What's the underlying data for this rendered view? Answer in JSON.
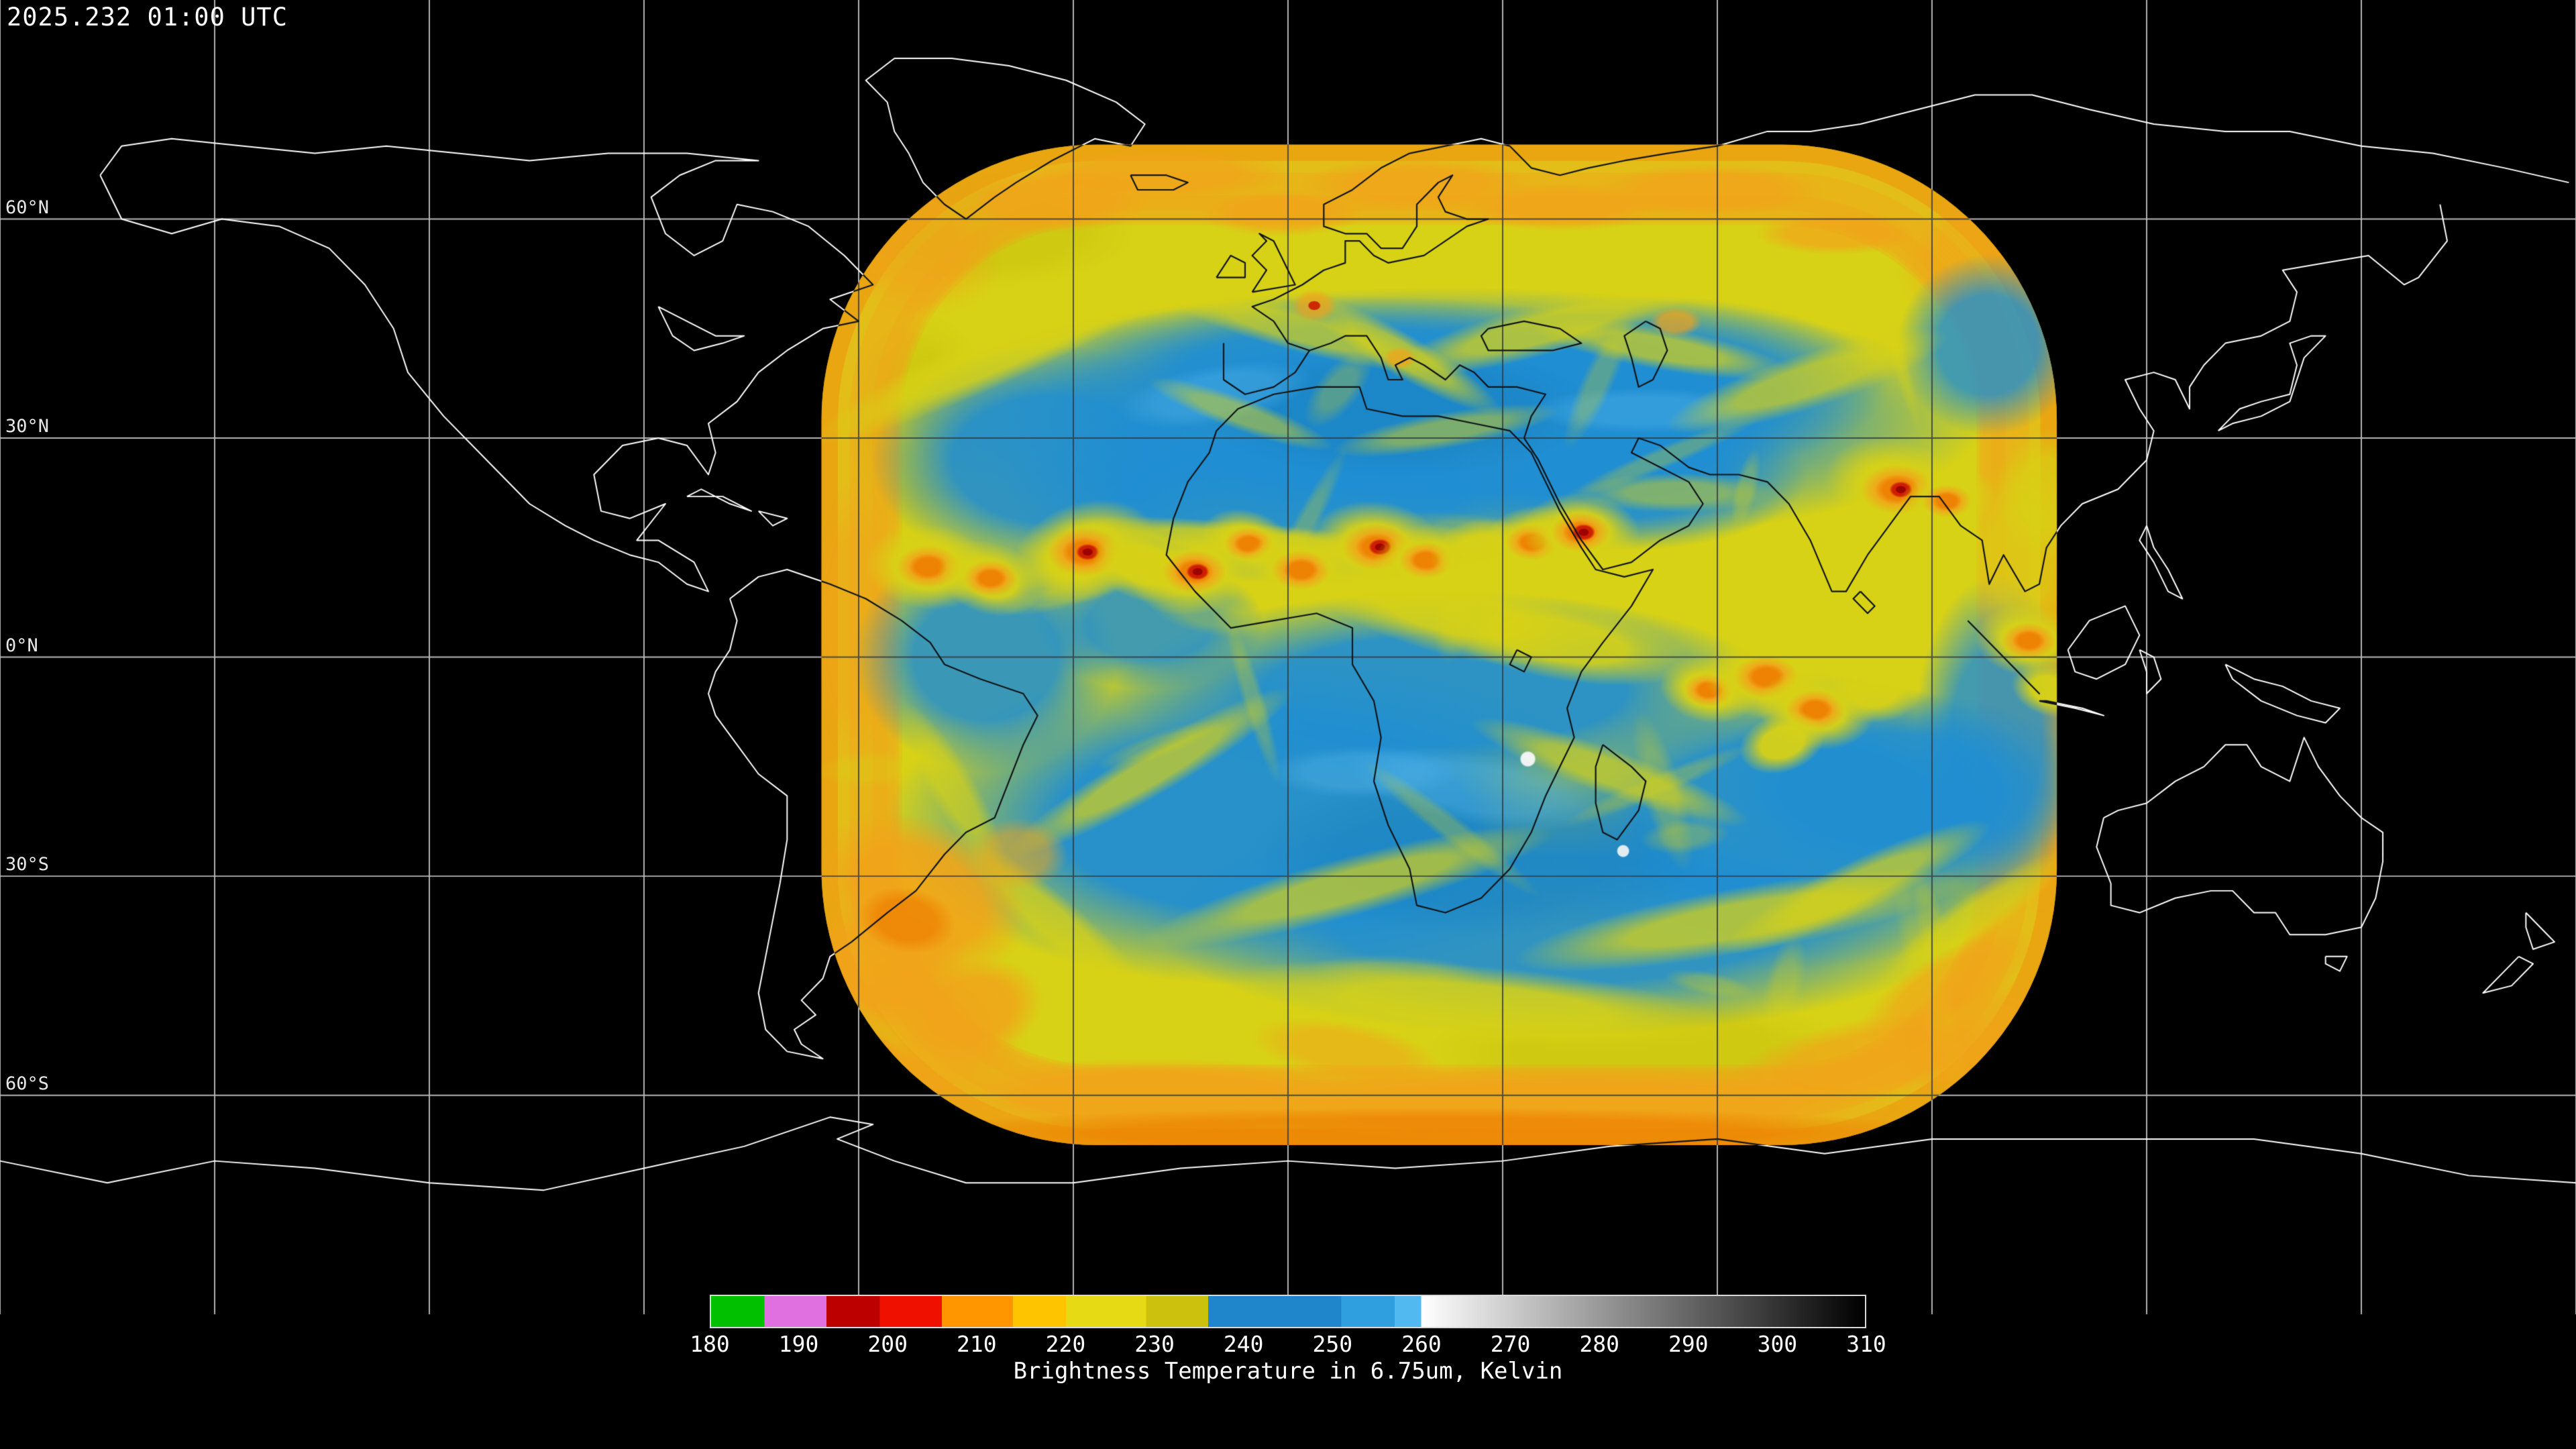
{
  "header": {
    "timestamp": "2025.232 01:00 UTC"
  },
  "map": {
    "latitude_labels": [
      "60°N",
      "30°N",
      "0°N",
      "30°S",
      "60°S"
    ],
    "latitude_values": [
      60,
      30,
      0,
      -30,
      -60
    ],
    "grid_interval_deg": 30,
    "coastline_color": "#ffffff",
    "background_color": "#000000"
  },
  "palette": {
    "yellow": "#d8d216",
    "dark_yellow": "#c2bc0c",
    "orange": "#f2a31a",
    "deep_orange": "#ee7f00",
    "red": "#cc1a00",
    "dark_red": "#990000",
    "blue": "#1f8ed3",
    "deep_blue": "#157ab8",
    "light_blue": "#58b8ea",
    "white_spot": "#f8f8f8"
  },
  "colorbar": {
    "title": "Brightness Temperature in 6.75um, Kelvin",
    "range_kelvin": [
      180,
      310
    ],
    "tick_labels": [
      "180",
      "190",
      "200",
      "210",
      "220",
      "230",
      "240",
      "250",
      "260",
      "270",
      "280",
      "290",
      "300",
      "310"
    ],
    "segments": [
      {
        "start": 180,
        "end": 186,
        "color": "#00c000"
      },
      {
        "start": 186,
        "end": 193,
        "color": "#e070e0"
      },
      {
        "start": 193,
        "end": 199,
        "color": "#bc0000"
      },
      {
        "start": 199,
        "end": 206,
        "color": "#f01000"
      },
      {
        "start": 206,
        "end": 214,
        "color": "#ff9600"
      },
      {
        "start": 214,
        "end": 220,
        "color": "#ffc400"
      },
      {
        "start": 220,
        "end": 229,
        "color": "#e6da14"
      },
      {
        "start": 229,
        "end": 236,
        "color": "#ccc20e"
      },
      {
        "start": 236,
        "end": 251,
        "color": "#1f86cc"
      },
      {
        "start": 251,
        "end": 257,
        "color": "#2f9fdf"
      },
      {
        "start": 257,
        "end": 260,
        "color": "#52b8f0"
      },
      {
        "start": 260,
        "end": 310,
        "gradient": [
          "#ffffff",
          "#000000"
        ]
      }
    ]
  }
}
